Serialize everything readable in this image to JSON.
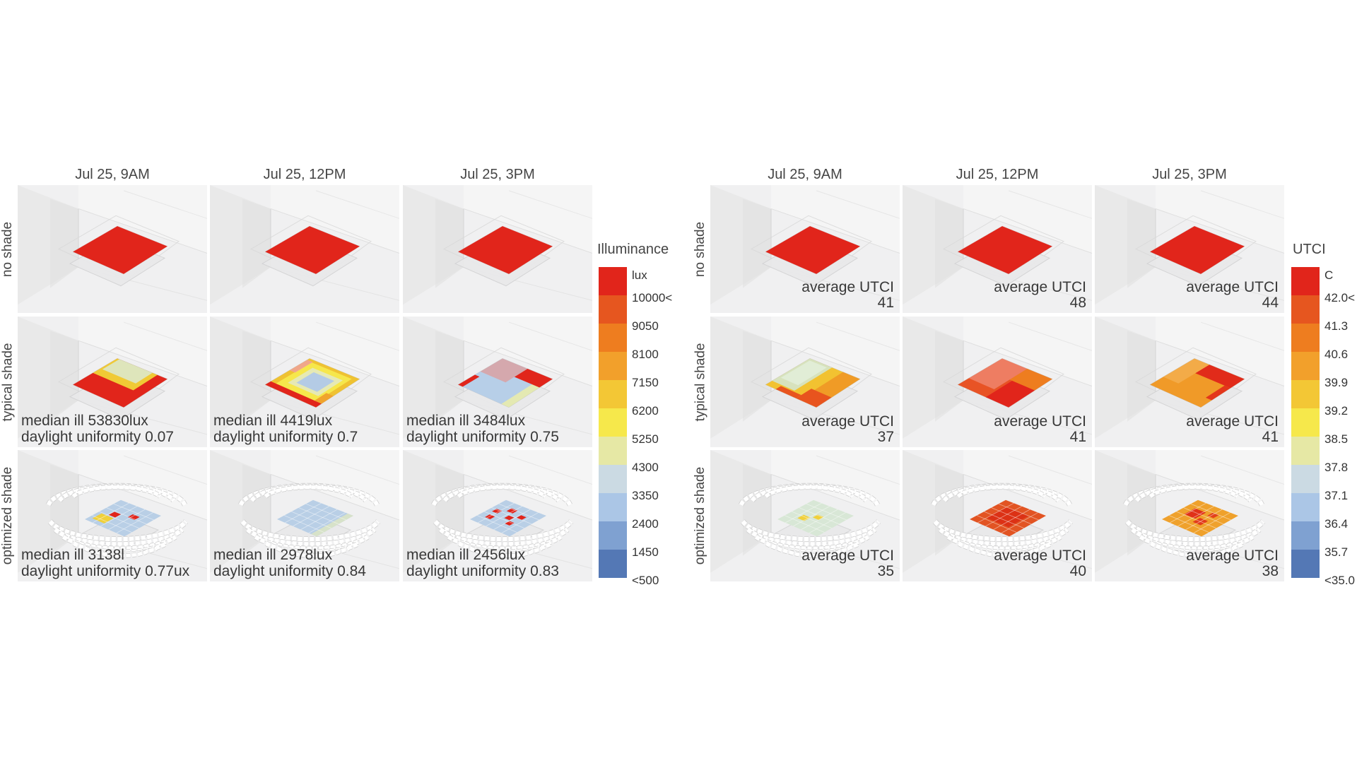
{
  "palette": [
    "#e1251b",
    "#e6561f",
    "#ee7d1f",
    "#f2a02b",
    "#f3c735",
    "#f6e84b",
    "#e6e8a5",
    "#cbdae3",
    "#abc6e6",
    "#7fa1d1",
    "#5478b5"
  ],
  "left": {
    "rows": [
      "no shade",
      "typical shade",
      "optimized shade"
    ],
    "columns": [
      "Jul 25, 9AM",
      "Jul 25, 12PM",
      "Jul 25, 3PM"
    ],
    "annotations": {
      "typical": [
        {
          "line1": "median ill 53830lux",
          "line2": "daylight uniformity 0.07"
        },
        {
          "line1": "median ill 4419lux",
          "line2": "daylight uniformity 0.7"
        },
        {
          "line1": "median ill 3484lux",
          "line2": "daylight uniformity 0.75"
        }
      ],
      "optimized": [
        {
          "line1": "median ill 3138l",
          "line2": "daylight uniformity 0.77ux"
        },
        {
          "line1": "median ill 2978lux",
          "line2": "daylight uniformity 0.84"
        },
        {
          "line1": "median ill 2456lux",
          "line2": "daylight uniformity 0.83"
        }
      ]
    },
    "legend": {
      "title": "Illuminance",
      "unit": "lux",
      "labels": [
        "10000<",
        "9050",
        "8100",
        "7150",
        "6200",
        "5250",
        "4300",
        "3350",
        "2400",
        "1450",
        "<500"
      ]
    }
  },
  "right": {
    "rows": [
      "no shade",
      "typical shade",
      "optimized shade"
    ],
    "columns": [
      "Jul 25, 9AM",
      "Jul 25, 12PM",
      "Jul 25, 3PM"
    ],
    "avg_label": "average UTCI",
    "averages": [
      [
        "41",
        "48",
        "44"
      ],
      [
        "37",
        "41",
        "41"
      ],
      [
        "35",
        "40",
        "38"
      ]
    ],
    "legend": {
      "title": "UTCI",
      "unit": "C",
      "labels": [
        "42.0<",
        "41.3",
        "40.6",
        "39.9",
        "39.2",
        "38.5",
        "37.8",
        "37.1",
        "36.4",
        "35.7",
        "<35.0"
      ]
    }
  }
}
